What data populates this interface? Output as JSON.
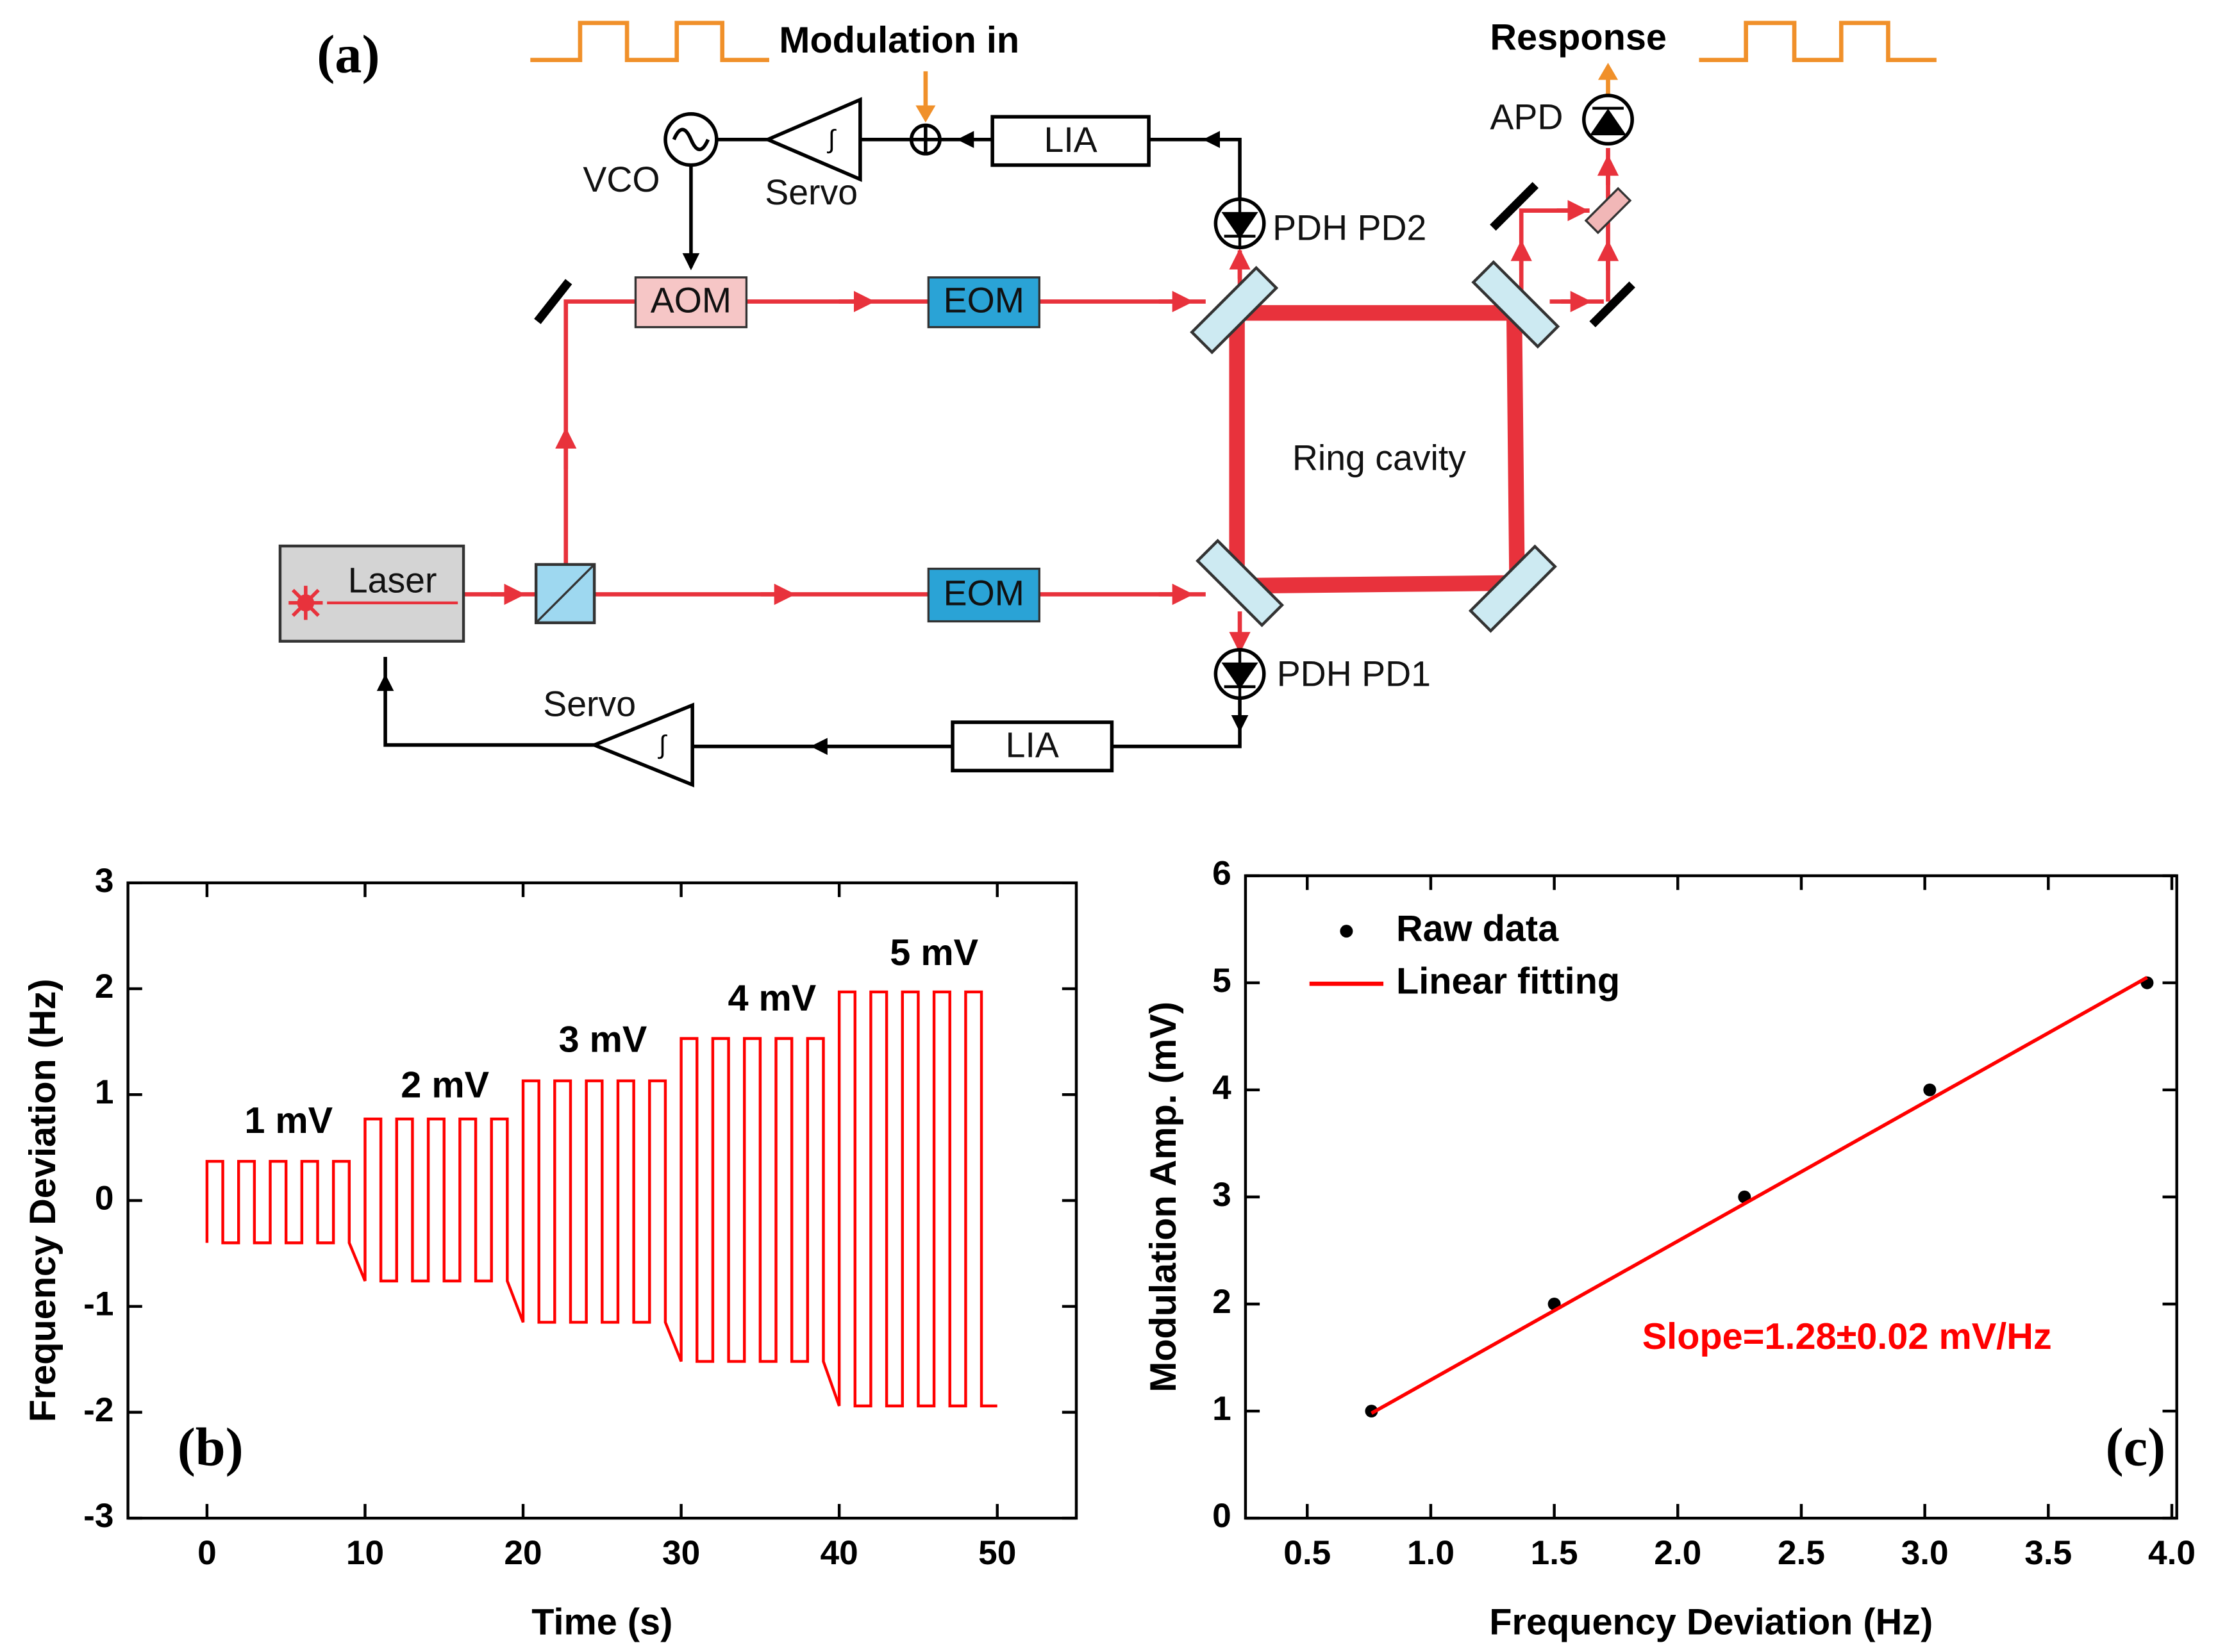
{
  "diagram": {
    "panel_label": "(a)",
    "modulation_in": "Modulation in",
    "response": "Response",
    "apd": "APD",
    "vco": "VCO",
    "servo_top": "Servo",
    "lia_top": "LIA",
    "pdh_pd2": "PDH PD2",
    "aom": "AOM",
    "eom_top": "EOM",
    "eom_bottom": "EOM",
    "ring_cavity": "Ring cavity",
    "laser": "Laser",
    "pdh_pd1": "PDH PD1",
    "servo_bottom": "Servo",
    "lia_bottom": "LIA"
  },
  "chart_data": [
    {
      "type": "line",
      "panel_label": "(b)",
      "x_label": "Time (s)",
      "y_label": "Frequency Deviation (Hz)",
      "color": "#ff0000",
      "annotations": [
        "1 mV",
        "2 mV",
        "3 mV",
        "4 mV",
        "5 mV"
      ],
      "xlim": [
        -5,
        55
      ],
      "xticks": [
        0,
        10,
        20,
        30,
        40,
        50
      ],
      "ylim": [
        -3,
        3
      ],
      "yticks": [
        -3,
        -2,
        -1,
        0,
        1,
        2,
        3
      ],
      "x": [
        0,
        0,
        1,
        1,
        2,
        2,
        3,
        3,
        4,
        4,
        5,
        5,
        6,
        6,
        7,
        7,
        8,
        8,
        9,
        9,
        10,
        10,
        11,
        11,
        12,
        12,
        13,
        13,
        14,
        14,
        15,
        15,
        16,
        16,
        17,
        17,
        18,
        18,
        19,
        19,
        20,
        20,
        21,
        21,
        22,
        22,
        23,
        23,
        24,
        24,
        25,
        25,
        26,
        26,
        27,
        27,
        28,
        28,
        29,
        29,
        30,
        30,
        31,
        31,
        32,
        32,
        33,
        33,
        34,
        34,
        35,
        35,
        36,
        36,
        37,
        37,
        38,
        38,
        39,
        39,
        40,
        40,
        41,
        41,
        42,
        42,
        43,
        43,
        44,
        44,
        45,
        45,
        46,
        46,
        47,
        47,
        48,
        48,
        49,
        49,
        50
      ],
      "values": [
        -0.4,
        0.37,
        0.37,
        -0.4,
        -0.4,
        0.37,
        0.37,
        -0.4,
        -0.4,
        0.37,
        0.37,
        -0.4,
        -0.4,
        0.37,
        0.37,
        -0.4,
        -0.4,
        0.37,
        0.37,
        -0.4,
        -0.76,
        0.77,
        0.77,
        -0.76,
        -0.76,
        0.77,
        0.77,
        -0.76,
        -0.76,
        0.77,
        0.77,
        -0.76,
        -0.76,
        0.77,
        0.77,
        -0.76,
        -0.76,
        0.77,
        0.77,
        -0.76,
        -1.15,
        1.13,
        1.13,
        -1.15,
        -1.15,
        1.13,
        1.13,
        -1.15,
        -1.15,
        1.13,
        1.13,
        -1.15,
        -1.15,
        1.13,
        1.13,
        -1.15,
        -1.15,
        1.13,
        1.13,
        -1.15,
        -1.52,
        1.53,
        1.53,
        -1.52,
        -1.52,
        1.53,
        1.53,
        -1.52,
        -1.52,
        1.53,
        1.53,
        -1.52,
        -1.52,
        1.53,
        1.53,
        -1.52,
        -1.52,
        1.53,
        1.53,
        -1.52,
        -1.94,
        1.97,
        1.97,
        -1.94,
        -1.94,
        1.97,
        1.97,
        -1.94,
        -1.94,
        1.97,
        1.97,
        -1.94,
        -1.94,
        1.97,
        1.97,
        -1.94,
        -1.94,
        1.97,
        1.97,
        -1.94,
        -1.94
      ]
    },
    {
      "type": "scatter",
      "panel_label": "(c)",
      "x_label": "Frequency Deviation (Hz)",
      "y_label": "Modulation Amp. (mV)",
      "annotation": "Slope=1.28±0.02 mV/Hz",
      "annotation_color": "#ff0000",
      "legend": "upper left",
      "xlim": [
        0.25,
        4.02
      ],
      "xticks": [
        0.5,
        {
          "value": 1,
          "label": "1.0"
        },
        1.5,
        {
          "value": 2,
          "label": "2.0"
        },
        2.5,
        {
          "value": 3,
          "label": "3.0"
        },
        3.5,
        {
          "value": 4,
          "label": "4.0"
        }
      ],
      "ylim": [
        0,
        6
      ],
      "yticks": [
        0,
        1,
        2,
        3,
        4,
        5,
        6
      ],
      "series": [
        {
          "name": "Raw data",
          "style": "markers",
          "color": "#000000",
          "x": [
            0.76,
            1.5,
            2.27,
            3.02,
            3.9
          ],
          "values": [
            1,
            2,
            3,
            4,
            5
          ]
        },
        {
          "name": "Linear fitting",
          "style": "line",
          "color": "#ff0000",
          "x": [
            0.76,
            3.9
          ],
          "values": [
            0.98,
            5.05
          ]
        }
      ]
    }
  ]
}
